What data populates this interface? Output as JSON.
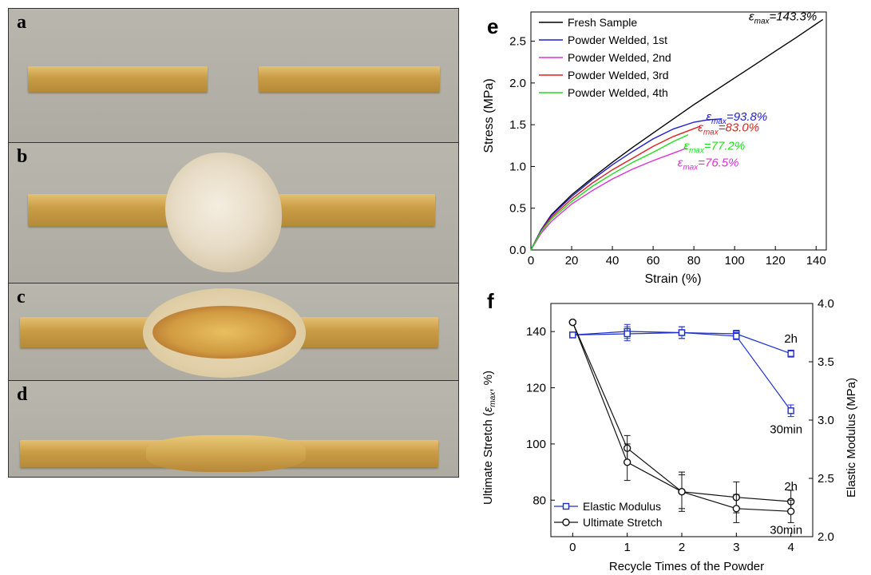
{
  "photo_panels": [
    {
      "label": "a"
    },
    {
      "label": "b"
    },
    {
      "label": "c"
    },
    {
      "label": "d"
    }
  ],
  "colors": {
    "fresh": "#000000",
    "first": "#1f1fcf",
    "second": "#e030d8",
    "third": "#e02020",
    "fourth": "#22dd22",
    "modulus": "#1f2fcf",
    "stretch": "#111111"
  },
  "chart_data": [
    {
      "panel_label": "e",
      "type": "line",
      "xlabel": "Strain (%)",
      "ylabel": "Stress (MPa)",
      "xlim": [
        0,
        145
      ],
      "ylim": [
        0,
        2.85
      ],
      "xticks": [
        0,
        20,
        40,
        60,
        80,
        100,
        120,
        140
      ],
      "yticks": [
        "0.0",
        "0.5",
        "1.0",
        "1.5",
        "2.0",
        "2.5"
      ],
      "legend_position": "top-left",
      "series": [
        {
          "name": "Fresh Sample",
          "color_key": "fresh",
          "x": [
            0,
            5,
            10,
            20,
            30,
            40,
            50,
            60,
            70,
            80,
            90,
            100,
            110,
            120,
            130,
            143.3
          ],
          "y": [
            0,
            0.24,
            0.42,
            0.66,
            0.86,
            1.05,
            1.23,
            1.4,
            1.57,
            1.74,
            1.9,
            2.06,
            2.22,
            2.38,
            2.54,
            2.76
          ]
        },
        {
          "name": "Powder Welded, 1st",
          "color_key": "first",
          "x": [
            0,
            5,
            10,
            20,
            30,
            40,
            50,
            60,
            70,
            80,
            87,
            93.8
          ],
          "y": [
            0,
            0.24,
            0.41,
            0.64,
            0.84,
            1.02,
            1.18,
            1.33,
            1.45,
            1.53,
            1.56,
            1.57
          ]
        },
        {
          "name": "Powder Welded, 2nd",
          "color_key": "second",
          "x": [
            0,
            5,
            10,
            20,
            30,
            40,
            50,
            60,
            70,
            76.5
          ],
          "y": [
            0,
            0.2,
            0.34,
            0.55,
            0.71,
            0.85,
            0.97,
            1.07,
            1.16,
            1.22
          ]
        },
        {
          "name": "Powder Welded, 3rd",
          "color_key": "third",
          "x": [
            0,
            5,
            10,
            20,
            30,
            40,
            50,
            60,
            70,
            83
          ],
          "y": [
            0,
            0.23,
            0.39,
            0.61,
            0.8,
            0.96,
            1.1,
            1.24,
            1.36,
            1.48
          ]
        },
        {
          "name": "Powder Welded, 4th",
          "color_key": "fourth",
          "x": [
            0,
            5,
            10,
            20,
            30,
            40,
            50,
            60,
            70,
            77.2
          ],
          "y": [
            0,
            0.22,
            0.37,
            0.58,
            0.76,
            0.91,
            1.05,
            1.17,
            1.3,
            1.38
          ]
        }
      ],
      "annotations": [
        {
          "prefix": "ε",
          "sub": "max",
          "text": "=143.3%",
          "color_key": "fresh",
          "x": 107,
          "y": 2.75
        },
        {
          "prefix": "ε",
          "sub": "max",
          "text": "=93.8%",
          "color_key": "first",
          "x": 86,
          "y": 1.55
        },
        {
          "prefix": "ε",
          "sub": "max",
          "text": "=83.0%",
          "color_key": "third",
          "x": 82,
          "y": 1.42
        },
        {
          "prefix": "ε",
          "sub": "max",
          "text": "=77.2%",
          "color_key": "fourth",
          "x": 75,
          "y": 1.2
        },
        {
          "prefix": "ε",
          "sub": "max",
          "text": "=76.5%",
          "color_key": "second",
          "x": 72,
          "y": 1.0
        }
      ]
    },
    {
      "panel_label": "f",
      "type": "line",
      "xlabel": "Recycle Times of the Powder",
      "ylabel_left_prefix": "Ultimate Stretch (",
      "ylabel_left_symbol": "ε",
      "ylabel_left_sub": "max",
      "ylabel_left_suffix": ", %)",
      "ylabel_right": "Elastic Modulus (MPa)",
      "xlim": [
        -0.4,
        4.4
      ],
      "ylim_left": [
        67,
        150
      ],
      "ylim_right": [
        2.0,
        4.0
      ],
      "xticks": [
        "0",
        "1",
        "2",
        "3",
        "4"
      ],
      "yticks_left": [
        "80",
        "100",
        "120",
        "140"
      ],
      "yticks_right": [
        "2.0",
        "2.5",
        "3.0",
        "3.5",
        "4.0"
      ],
      "legend_position": "bottom-left",
      "series": [
        {
          "name": "Elastic Modulus",
          "axis": "right",
          "marker": "square",
          "color_key": "modulus",
          "label": "2h",
          "x": [
            0,
            1,
            2,
            3,
            4
          ],
          "y": [
            3.73,
            3.76,
            3.75,
            3.74,
            3.57
          ],
          "err": [
            0.01,
            0.06,
            0.05,
            0.03,
            0.03
          ]
        },
        {
          "name": "",
          "axis": "right",
          "marker": "square",
          "color_key": "modulus",
          "label": "30min",
          "x": [
            0,
            1,
            2,
            3,
            4
          ],
          "y": [
            3.73,
            3.74,
            3.75,
            3.72,
            3.08
          ],
          "err": [
            0.01,
            0.06,
            0.05,
            0.03,
            0.05
          ]
        },
        {
          "name": "Ultimate Stretch",
          "axis": "left",
          "marker": "circle",
          "color_key": "stretch",
          "label": "2h",
          "x": [
            0,
            1,
            2,
            3,
            4
          ],
          "y": [
            143.3,
            98.5,
            83.0,
            81.0,
            79.5
          ],
          "err": [
            0.5,
            4.5,
            7,
            5.5,
            4
          ]
        },
        {
          "name": "",
          "axis": "left",
          "marker": "circle",
          "color_key": "stretch",
          "label": "30min",
          "x": [
            0,
            1,
            2,
            3,
            4
          ],
          "y": [
            143.3,
            93.5,
            83.0,
            77.0,
            76.0
          ],
          "err": [
            0.5,
            6.5,
            6,
            5,
            4
          ]
        }
      ]
    }
  ]
}
